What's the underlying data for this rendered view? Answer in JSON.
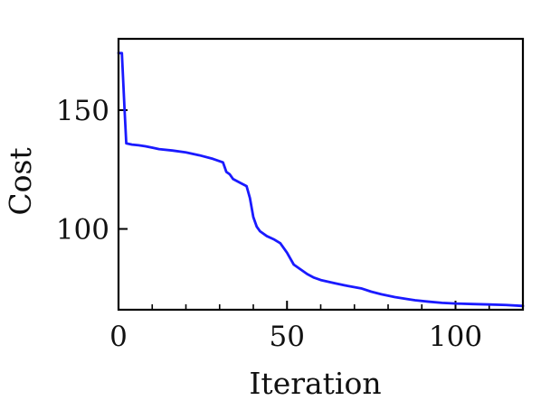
{
  "chart_data": {
    "type": "line",
    "title": "",
    "xlabel": "Iteration",
    "ylabel": "Cost",
    "xlim": [
      0,
      120
    ],
    "ylim": [
      66,
      180
    ],
    "x_ticks": [
      0,
      50,
      100
    ],
    "x_minor_ticks": [
      10,
      20,
      30,
      40,
      60,
      70,
      80,
      90,
      110
    ],
    "y_ticks": [
      100,
      150
    ],
    "grid": false,
    "legend": "none",
    "series": [
      {
        "color": "#1a1aff",
        "x": [
          0,
          1,
          1.8,
          2.3,
          4,
          6,
          8,
          10,
          12,
          16,
          20,
          24,
          28,
          31,
          32,
          33,
          34,
          36,
          38,
          39,
          40,
          41,
          42,
          44,
          46,
          48,
          50,
          52,
          54,
          56,
          58,
          60,
          64,
          68,
          72,
          75,
          78,
          82,
          86,
          88,
          92,
          96,
          100,
          105,
          110,
          115,
          120
        ],
        "y": [
          174,
          174,
          150,
          136,
          135.5,
          135.2,
          134.8,
          134.2,
          133.6,
          133,
          132.2,
          131,
          129.5,
          128,
          124,
          123,
          121,
          119.5,
          118,
          113,
          105,
          101,
          99,
          97,
          95.7,
          94,
          90,
          85,
          83,
          81,
          79.5,
          78.5,
          77.2,
          76,
          75,
          73.6,
          72.5,
          71.3,
          70.4,
          70,
          69.4,
          68.9,
          68.6,
          68.4,
          68.2,
          68,
          67.6
        ]
      }
    ]
  }
}
